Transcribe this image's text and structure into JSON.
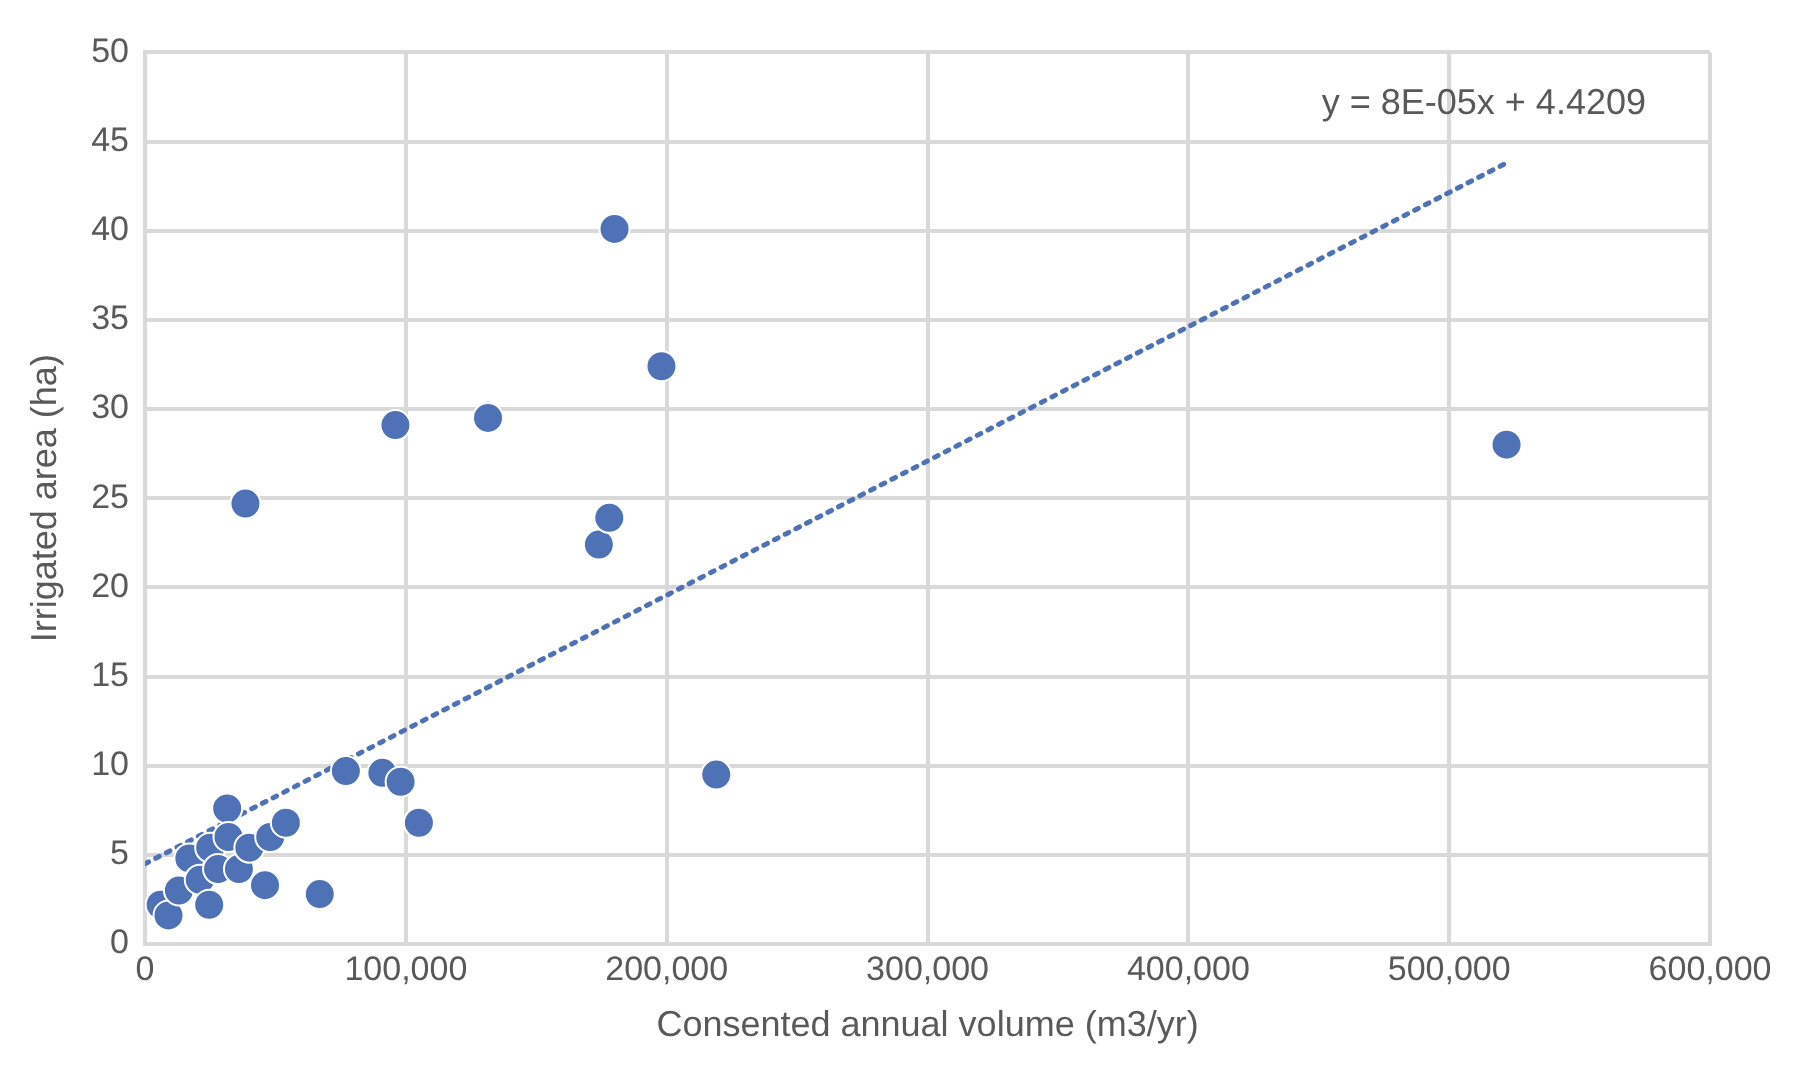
{
  "chart_data": {
    "type": "scatter",
    "xlabel": "Consented annual volume (m3/yr)",
    "ylabel": "Irrigated area (ha)",
    "xlim": [
      0,
      600000
    ],
    "xticks": [
      {
        "value": 0,
        "label": "0"
      },
      {
        "value": 100000,
        "label": "100,000"
      },
      {
        "value": 200000,
        "label": "200,000"
      },
      {
        "value": 300000,
        "label": "300,000"
      },
      {
        "value": 400000,
        "label": "400,000"
      },
      {
        "value": 500000,
        "label": "500,000"
      },
      {
        "value": 600000,
        "label": "600,000"
      }
    ],
    "ylim": [
      0,
      50
    ],
    "yticks": [
      0,
      5,
      10,
      15,
      20,
      25,
      30,
      35,
      40,
      45,
      50
    ],
    "grid": true,
    "legend": false,
    "marker": "circle",
    "annotations": [
      "y = 8E-05x + 4.4209"
    ],
    "series": [
      {
        "color": "#4f71b5",
        "x": [
          6000,
          9000,
          13000,
          17000,
          21000,
          24600,
          25000,
          28000,
          31500,
          32000,
          36000,
          40000,
          48000,
          54000,
          46000,
          67000,
          77000,
          91000,
          98000,
          105000,
          38500,
          96000,
          131500,
          174000,
          178000,
          180000,
          198000,
          219000,
          522000
        ],
        "values": [
          2.2,
          1.6,
          3.0,
          4.8,
          3.6,
          2.2,
          5.4,
          4.2,
          7.6,
          6.0,
          4.2,
          5.4,
          6.0,
          6.8,
          3.3,
          2.8,
          9.7,
          9.6,
          9.1,
          6.8,
          24.7,
          29.1,
          29.5,
          22.4,
          23.9,
          40.1,
          32.4,
          9.5,
          28.0
        ]
      },
      {
        "type": "line",
        "color": "#4f71b5",
        "line_style": "dotted",
        "marker": "none",
        "x": [
          0,
          522000
        ],
        "values": [
          4.5,
          43.8
        ]
      }
    ]
  }
}
